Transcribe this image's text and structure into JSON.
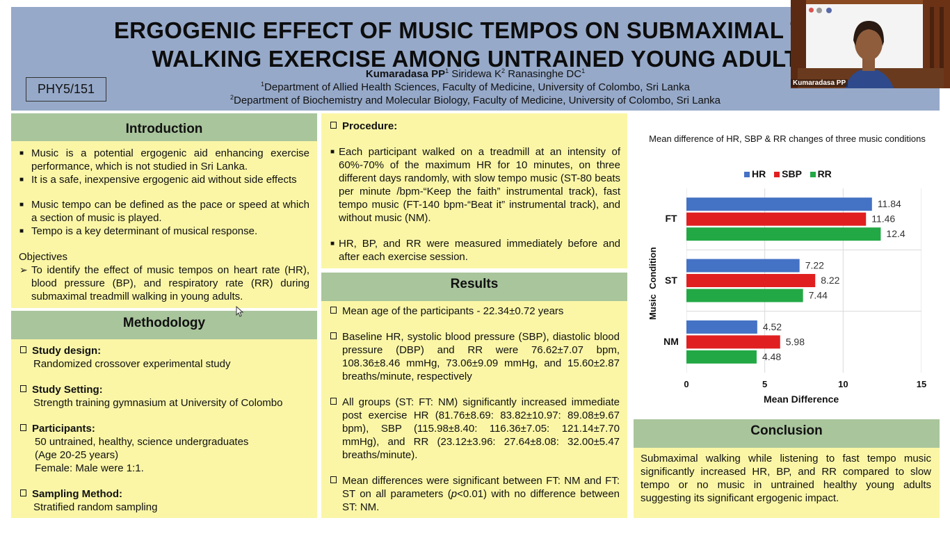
{
  "header": {
    "title_line1": "ERGOGENIC EFFECT OF MUSIC TEMPOS ON SUBMAXIMAL TRE",
    "title_line2": "WALKING EXERCISE AMONG UNTRAINED YOUNG ADULT",
    "code": "PHY5/151",
    "author_main": "Kumaradasa PP",
    "author_main_sup": "1",
    "author_rest_a": " Siridewa K",
    "author_rest_a_sup": "2",
    "author_rest_b": " Ranasinghe DC",
    "author_rest_b_sup": "1",
    "affil1_sup": "1",
    "affil1": "Department of Allied Health Sciences, Faculty of Medicine, University of Colombo, Sri Lanka",
    "affil2_sup": "2",
    "affil2": "Department of Biochemistry and Molecular Biology, Faculty of Medicine, University of Colombo, Sri Lanka"
  },
  "introduction": {
    "title": "Introduction",
    "bullets": [
      "Music is a potential ergogenic aid enhancing exercise performance, which is not studied in Sri Lanka.",
      "It is a safe, inexpensive ergogenic aid without side effects",
      "Music tempo can be defined as the pace or speed at which a section of music is played.",
      "Tempo is a key determinant of musical response."
    ],
    "objectives_label": "Objectives",
    "objective": "To identify the effect of music tempos on heart rate (HR), blood pressure (BP), and respiratory rate (RR) during submaximal treadmill walking in young adults."
  },
  "methodology": {
    "title": "Methodology",
    "items": [
      {
        "head": "Study design:",
        "body": [
          "Randomized crossover experimental study"
        ]
      },
      {
        "head": "Study Setting:",
        "body": [
          "Strength training gymnasium at University of Colombo"
        ]
      },
      {
        "head": "Participants:",
        "body": [
          "50 untrained, healthy, science undergraduates",
          "(Age 20-25   years)",
          "Female: Male were 1:1."
        ]
      },
      {
        "head": "Sampling Method:",
        "body": [
          "Stratified random sampling"
        ]
      }
    ]
  },
  "procedure": {
    "title": "Procedure:",
    "bullets": [
      "Each participant walked on a treadmill at an intensity of 60%-70% of the maximum HR for 10 minutes, on three different days randomly, with slow tempo music (ST-80 beats per minute /bpm-“Keep the faith” instrumental track), fast tempo music (FT-140 bpm-“Beat it” instrumental track), and without music (NM).",
      "HR, BP, and RR were measured immediately before and after each exercise session."
    ]
  },
  "results": {
    "title": "Results",
    "items": [
      "Mean age of the participants - 22.34±0.72 years",
      "Baseline HR, systolic blood pressure (SBP), diastolic blood pressure (DBP) and RR were 76.62±7.07 bpm, 108.36±8.46 mmHg, 73.06±9.09 mmHg, and 15.60±2.87 breaths/minute, respectively",
      "All groups (ST: FT: NM) significantly increased immediate post exercise HR (81.76±8.69: 83.82±10.97: 89.08±9.67 bpm), SBP (115.98±8.40: 116.36±7.05: 121.14±7.70 mmHg), and RR (23.12±3.96: 27.64±8.08: 32.00±5.47 breaths/minute).",
      "Mean differences were significant between FT: NM and FT: ST on all parameters (p<0.01) with no difference between ST: NM."
    ]
  },
  "chart_data": {
    "type": "bar",
    "orientation": "horizontal",
    "title": "Mean difference of HR, SBP & RR changes of three music conditions",
    "xlabel": "Mean Difference",
    "ylabel": "Music  Condition",
    "categories": [
      "FT",
      "ST",
      "NM"
    ],
    "series": [
      {
        "name": "HR",
        "color": "#4472c4",
        "values": [
          11.84,
          7.22,
          4.52
        ]
      },
      {
        "name": "SBP",
        "color": "#e02020",
        "values": [
          11.46,
          8.22,
          5.98
        ]
      },
      {
        "name": "RR",
        "color": "#22a845",
        "values": [
          12.4,
          7.44,
          4.48
        ]
      }
    ],
    "xlim": [
      0,
      15
    ],
    "xticks": [
      0,
      5,
      10,
      15
    ],
    "legend_position": "top"
  },
  "conclusion": {
    "title": "Conclusion",
    "text": "Submaximal walking while listening to fast tempo music significantly increased HR, BP, and RR compared to slow tempo or no music in untrained healthy young adults suggesting its significant ergogenic impact."
  },
  "webcam": {
    "name": "Kumaradasa PP"
  },
  "colors": {
    "header_bg": "#96a9c9",
    "section_title_bg": "#a9c59c",
    "panel_bg": "#faf6a6"
  }
}
